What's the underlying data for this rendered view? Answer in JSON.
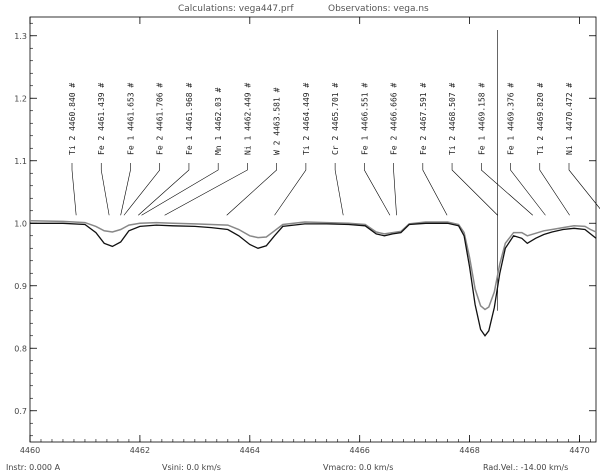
{
  "chart_data": {
    "type": "line",
    "title_calc": "Calculations: vega447.prf",
    "title_obs": "Observations: vega.ns",
    "xlim": [
      4460,
      4470.3
    ],
    "ylim": [
      0.65,
      1.33
    ],
    "x_ticks": [
      4460,
      4462,
      4464,
      4466,
      4468,
      4470
    ],
    "y_ticks": [
      0.7,
      0.8,
      0.9,
      1.0,
      1.1,
      1.2,
      1.3
    ],
    "footer": {
      "instr": "Instr: 0.000 A",
      "vsini": "Vsini: 0.0 km/s",
      "vmacro": "Vmacro: 0.0 km/s",
      "radvel": "Rad.Vel.: -14.00 km/s"
    },
    "lines": [
      {
        "x": 4460.84,
        "ion": "Ti",
        "stage": "2",
        "wl": "4460.840",
        "mark": "#"
      },
      {
        "x": 4461.44,
        "ion": "Fe",
        "stage": "2",
        "wl": "4461.439",
        "mark": "#"
      },
      {
        "x": 4461.65,
        "ion": "Fe",
        "stage": "1",
        "wl": "4461.653",
        "mark": "#"
      },
      {
        "x": 4461.71,
        "ion": "Fe",
        "stage": "2",
        "wl": "4461.706",
        "mark": "#"
      },
      {
        "x": 4461.97,
        "ion": "Fe",
        "stage": "1",
        "wl": "4461.968",
        "mark": "#"
      },
      {
        "x": 4462.03,
        "ion": "Mn",
        "stage": "1",
        "wl": "4462.03",
        "mark": "#"
      },
      {
        "x": 4462.45,
        "ion": "Ni",
        "stage": "1",
        "wl": "4462.449",
        "mark": "#"
      },
      {
        "x": 4463.58,
        "ion": "W",
        "stage": "2",
        "wl": "4463.581",
        "mark": "#"
      },
      {
        "x": 4464.45,
        "ion": "Ti",
        "stage": "2",
        "wl": "4464.449",
        "mark": "#"
      },
      {
        "x": 4465.7,
        "ion": "Cr",
        "stage": "2",
        "wl": "4465.701",
        "mark": "#"
      },
      {
        "x": 4466.55,
        "ion": "Fe",
        "stage": "1",
        "wl": "4466.551",
        "mark": "#"
      },
      {
        "x": 4466.67,
        "ion": "Fe",
        "stage": "2",
        "wl": "4466.666",
        "mark": "#"
      },
      {
        "x": 4467.59,
        "ion": "Fe",
        "stage": "2",
        "wl": "4467.591",
        "mark": "#"
      },
      {
        "x": 4468.51,
        "ion": "Ti",
        "stage": "2",
        "wl": "4468.507",
        "mark": "#"
      },
      {
        "x": 4469.15,
        "ion": "Fe",
        "stage": "1",
        "wl": "4469.158",
        "mark": "#"
      },
      {
        "x": 4469.38,
        "ion": "Fe",
        "stage": "1",
        "wl": "4469.376",
        "mark": "#"
      },
      {
        "x": 4469.82,
        "ion": "Ti",
        "stage": "2",
        "wl": "4469.820",
        "mark": "#"
      },
      {
        "x": 4470.47,
        "ion": "Ni",
        "stage": "1",
        "wl": "4470.472",
        "mark": "#"
      }
    ],
    "series": [
      {
        "style": "calculated",
        "color": "#111111",
        "points": [
          [
            4460.0,
            1.0
          ],
          [
            4460.6,
            1.0
          ],
          [
            4461.0,
            0.998
          ],
          [
            4461.2,
            0.985
          ],
          [
            4461.35,
            0.968
          ],
          [
            4461.5,
            0.963
          ],
          [
            4461.65,
            0.97
          ],
          [
            4461.8,
            0.988
          ],
          [
            4462.0,
            0.995
          ],
          [
            4462.3,
            0.997
          ],
          [
            4462.6,
            0.996
          ],
          [
            4463.0,
            0.995
          ],
          [
            4463.3,
            0.993
          ],
          [
            4463.6,
            0.99
          ],
          [
            4463.8,
            0.98
          ],
          [
            4464.0,
            0.966
          ],
          [
            4464.15,
            0.96
          ],
          [
            4464.3,
            0.964
          ],
          [
            4464.45,
            0.98
          ],
          [
            4464.6,
            0.995
          ],
          [
            4465.0,
            0.999
          ],
          [
            4465.4,
            0.999
          ],
          [
            4465.8,
            0.998
          ],
          [
            4466.1,
            0.996
          ],
          [
            4466.3,
            0.983
          ],
          [
            4466.45,
            0.98
          ],
          [
            4466.6,
            0.983
          ],
          [
            4466.75,
            0.985
          ],
          [
            4466.9,
            0.998
          ],
          [
            4467.2,
            1.0
          ],
          [
            4467.6,
            1.0
          ],
          [
            4467.8,
            0.996
          ],
          [
            4467.9,
            0.98
          ],
          [
            4468.0,
            0.93
          ],
          [
            4468.1,
            0.87
          ],
          [
            4468.2,
            0.83
          ],
          [
            4468.28,
            0.82
          ],
          [
            4468.35,
            0.828
          ],
          [
            4468.45,
            0.865
          ],
          [
            4468.55,
            0.92
          ],
          [
            4468.65,
            0.96
          ],
          [
            4468.8,
            0.98
          ],
          [
            4468.95,
            0.976
          ],
          [
            4469.05,
            0.968
          ],
          [
            4469.2,
            0.976
          ],
          [
            4469.35,
            0.982
          ],
          [
            4469.5,
            0.986
          ],
          [
            4469.7,
            0.99
          ],
          [
            4469.9,
            0.992
          ],
          [
            4470.1,
            0.99
          ],
          [
            4470.2,
            0.983
          ],
          [
            4470.3,
            0.976
          ]
        ]
      },
      {
        "style": "observed",
        "color": "#888888",
        "points": [
          [
            4460.0,
            1.004
          ],
          [
            4460.6,
            1.003
          ],
          [
            4461.0,
            1.001
          ],
          [
            4461.2,
            0.995
          ],
          [
            4461.35,
            0.988
          ],
          [
            4461.5,
            0.986
          ],
          [
            4461.65,
            0.99
          ],
          [
            4461.8,
            0.997
          ],
          [
            4462.0,
            1.0
          ],
          [
            4462.3,
            1.001
          ],
          [
            4462.6,
            1.0
          ],
          [
            4463.0,
            0.999
          ],
          [
            4463.3,
            0.998
          ],
          [
            4463.6,
            0.997
          ],
          [
            4463.8,
            0.99
          ],
          [
            4464.0,
            0.98
          ],
          [
            4464.15,
            0.977
          ],
          [
            4464.3,
            0.978
          ],
          [
            4464.45,
            0.988
          ],
          [
            4464.6,
            0.998
          ],
          [
            4465.0,
            1.002
          ],
          [
            4465.4,
            1.001
          ],
          [
            4465.8,
            1.0
          ],
          [
            4466.1,
            0.998
          ],
          [
            4466.3,
            0.986
          ],
          [
            4466.45,
            0.983
          ],
          [
            4466.6,
            0.985
          ],
          [
            4466.75,
            0.987
          ],
          [
            4466.9,
            0.999
          ],
          [
            4467.2,
            1.002
          ],
          [
            4467.6,
            1.002
          ],
          [
            4467.8,
            0.998
          ],
          [
            4467.9,
            0.985
          ],
          [
            4468.0,
            0.945
          ],
          [
            4468.1,
            0.895
          ],
          [
            4468.2,
            0.868
          ],
          [
            4468.28,
            0.862
          ],
          [
            4468.35,
            0.866
          ],
          [
            4468.45,
            0.89
          ],
          [
            4468.55,
            0.935
          ],
          [
            4468.65,
            0.968
          ],
          [
            4468.8,
            0.985
          ],
          [
            4468.95,
            0.985
          ],
          [
            4469.05,
            0.98
          ],
          [
            4469.2,
            0.984
          ],
          [
            4469.35,
            0.988
          ],
          [
            4469.5,
            0.99
          ],
          [
            4469.7,
            0.993
          ],
          [
            4469.9,
            0.996
          ],
          [
            4470.1,
            0.995
          ],
          [
            4470.2,
            0.99
          ],
          [
            4470.3,
            0.986
          ]
        ]
      }
    ]
  }
}
